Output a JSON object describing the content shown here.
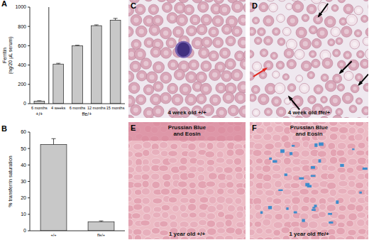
{
  "chart_data": [
    {
      "type": "bar",
      "annotations": [
        "A"
      ],
      "ylabel": [
        "Ferritin",
        "(ng/20 µL serum)"
      ],
      "categories": [
        "6 months",
        "4 weeks",
        "6 months",
        "12 months",
        "15 months"
      ],
      "values": [
        25,
        410,
        600,
        808,
        865
      ],
      "errors": [
        5,
        8,
        5,
        8,
        18
      ],
      "groups": [
        {
          "label": "+/+",
          "start": 0,
          "end": 0
        },
        {
          "label": "ffe/+",
          "start": 1,
          "end": 4
        }
      ],
      "color": "#c8c8c8",
      "ylim": [
        0,
        1000
      ],
      "yticks": [
        0,
        200,
        400,
        600,
        800,
        1000
      ],
      "grid": false
    },
    {
      "type": "bar",
      "annotations": [
        "B"
      ],
      "ylabel": [
        "% transferrin saturation"
      ],
      "categories": [
        "+/+",
        "ffe/+"
      ],
      "values": [
        52.5,
        5.5
      ],
      "errors": [
        3.5,
        0.5
      ],
      "color": "#c8c8c8",
      "ylim": [
        0,
        60
      ],
      "yticks": [
        0,
        10,
        20,
        30,
        40,
        50,
        60
      ],
      "grid": false
    }
  ],
  "panels": [
    {
      "label": "C",
      "caption": "4 week old +/+"
    },
    {
      "label": "D",
      "caption": "4 week old ffe/+"
    },
    {
      "label": "E",
      "stain": [
        "Prussian Blue",
        "and Eosin"
      ],
      "caption": "1 year old +/+"
    },
    {
      "label": "F",
      "stain": [
        "Prussian Blue",
        "and Eosin"
      ],
      "caption": "1 year old ffe/+"
    }
  ]
}
